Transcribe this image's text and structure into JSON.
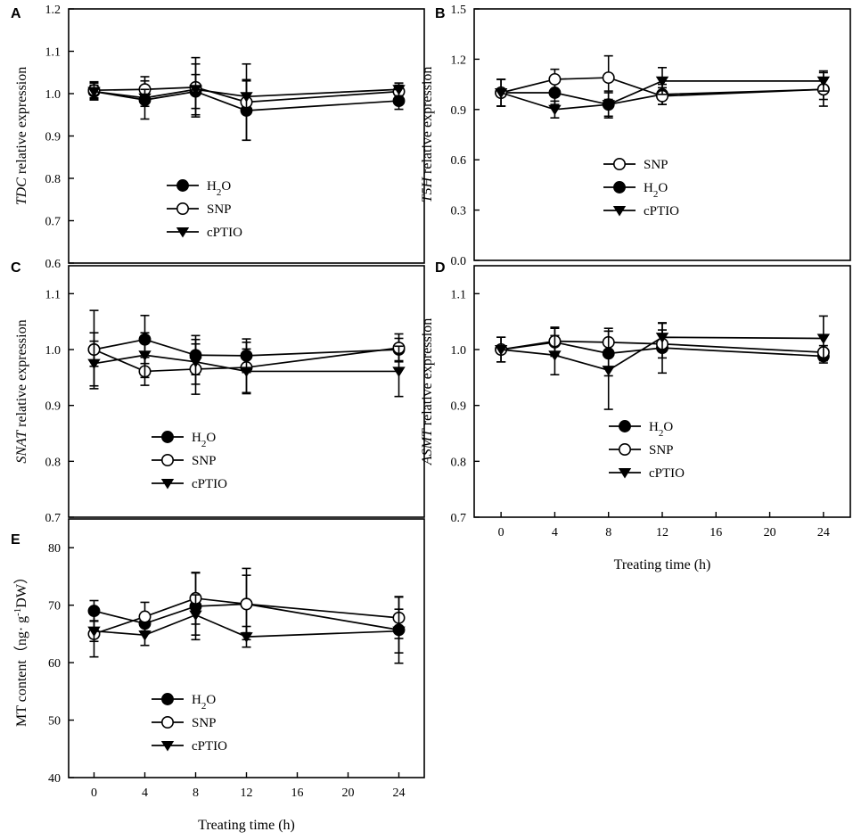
{
  "figure": {
    "xlabel_text": "Treating time (h)"
  },
  "chart_data": [
    {
      "id": "A",
      "panel_label": "A",
      "type": "line",
      "ylabel_parts": [
        {
          "t": "TDC",
          "i": true
        },
        {
          "t": " relative expression"
        }
      ],
      "ylim": [
        0.6,
        1.2
      ],
      "yticks": [
        0.6,
        0.7,
        0.8,
        0.9,
        1.0,
        1.1,
        1.2
      ],
      "ydecimals": 1,
      "xlim": [
        -2,
        26
      ],
      "xticks": [],
      "x_tick_labels": false,
      "x": [
        0,
        4,
        8,
        12,
        24
      ],
      "series": [
        {
          "name": "H2O",
          "label_html": "H<tspan baseline-shift=\"sub\" font-size=\"11\">2</tspan>O",
          "marker": "circle-filled",
          "values": [
            1.005,
            0.985,
            1.005,
            0.96,
            0.983
          ],
          "errors": [
            0.02,
            0.045,
            0.04,
            0.07,
            0.02
          ]
        },
        {
          "name": "SNP",
          "marker": "circle-open",
          "values": [
            1.008,
            1.01,
            1.015,
            0.98,
            1.005
          ],
          "errors": [
            0.02,
            0.03,
            0.07,
            0.09,
            0.015
          ]
        },
        {
          "name": "cPTIO",
          "marker": "triangle-down",
          "values": [
            1.005,
            0.99,
            1.01,
            0.993,
            1.01
          ],
          "errors": [
            0.015,
            0.02,
            0.06,
            0.04,
            0.015
          ]
        }
      ],
      "legend_order": [
        "H2O",
        "SNP",
        "cPTIO"
      ]
    },
    {
      "id": "B",
      "panel_label": "B",
      "type": "line",
      "ylabel_parts": [
        {
          "t": "T5H",
          "i": true
        },
        {
          "t": " relative expression"
        }
      ],
      "ylim": [
        0.0,
        1.5
      ],
      "yticks": [
        0.0,
        0.3,
        0.6,
        0.9,
        1.2,
        1.5
      ],
      "ydecimals": 1,
      "xlim": [
        -2,
        26
      ],
      "xticks": [],
      "x_tick_labels": false,
      "x": [
        0,
        4,
        8,
        12,
        24
      ],
      "series": [
        {
          "name": "H2O",
          "label_html": "H<tspan baseline-shift=\"sub\" font-size=\"11\">2</tspan>O",
          "marker": "circle-filled",
          "values": [
            1.0,
            1.0,
            0.93,
            0.99,
            1.02
          ],
          "errors": [
            0.08,
            0.07,
            0.07,
            0.06,
            0.1
          ]
        },
        {
          "name": "SNP",
          "marker": "circle-open",
          "values": [
            1.0,
            1.08,
            1.09,
            0.98,
            1.02
          ],
          "errors": [
            0.08,
            0.06,
            0.13,
            0.05,
            0.06
          ]
        },
        {
          "name": "cPTIO",
          "marker": "triangle-down",
          "values": [
            1.0,
            0.9,
            0.93,
            1.07,
            1.07
          ],
          "errors": [
            0.08,
            0.05,
            0.08,
            0.08,
            0.06
          ]
        }
      ],
      "legend_order": [
        "SNP",
        "H2O",
        "cPTIO"
      ]
    },
    {
      "id": "C",
      "panel_label": "C",
      "type": "line",
      "ylabel_parts": [
        {
          "t": "SNAT",
          "i": true
        },
        {
          "t": " relative expression"
        }
      ],
      "ylim": [
        0.7,
        1.15
      ],
      "yticks": [
        0.7,
        0.8,
        0.9,
        1.0,
        1.1
      ],
      "ydecimals": 1,
      "xlim": [
        -2,
        26
      ],
      "xticks": [],
      "x_tick_labels": false,
      "x": [
        0,
        4,
        8,
        12,
        24
      ],
      "series": [
        {
          "name": "H2O",
          "label_html": "H<tspan baseline-shift=\"sub\" font-size=\"11\">2</tspan>O",
          "marker": "circle-filled",
          "values": [
            1.0,
            1.018,
            0.99,
            0.989,
            1.0
          ],
          "errors": [
            0.07,
            0.043,
            0.035,
            0.03,
            0.02
          ]
        },
        {
          "name": "SNP",
          "marker": "circle-open",
          "values": [
            1.0,
            0.961,
            0.965,
            0.968,
            1.003
          ],
          "errors": [
            0.03,
            0.025,
            0.045,
            0.045,
            0.025
          ]
        },
        {
          "name": "cPTIO",
          "marker": "triangle-down",
          "values": [
            0.975,
            0.99,
            0.978,
            0.961,
            0.961
          ],
          "errors": [
            0.04,
            0.04,
            0.04,
            0.04,
            0.045
          ]
        }
      ],
      "legend_order": [
        "H2O",
        "SNP",
        "cPTIO"
      ]
    },
    {
      "id": "D",
      "panel_label": "D",
      "type": "line",
      "ylabel_parts": [
        {
          "t": "ASMT",
          "i": true
        },
        {
          "t": " relative expression"
        }
      ],
      "ylim": [
        0.7,
        1.15
      ],
      "yticks": [
        0.7,
        0.8,
        0.9,
        1.0,
        1.1
      ],
      "ydecimals": 1,
      "xlim": [
        -2,
        26
      ],
      "xticks": [
        0,
        4,
        8,
        12,
        16,
        20,
        24
      ],
      "x_tick_labels": true,
      "x": [
        0,
        4,
        8,
        12,
        24
      ],
      "series": [
        {
          "name": "H2O",
          "label_html": "H<tspan baseline-shift=\"sub\" font-size=\"11\">2</tspan>O",
          "marker": "circle-filled",
          "values": [
            1.0,
            1.013,
            0.993,
            1.003,
            0.988
          ],
          "errors": [
            0.022,
            0.025,
            0.04,
            0.045,
            0.012
          ]
        },
        {
          "name": "SNP",
          "marker": "circle-open",
          "values": [
            1.0,
            1.015,
            1.013,
            1.01,
            0.995
          ],
          "errors": [
            0.022,
            0.025,
            0.025,
            0.025,
            0.012
          ]
        },
        {
          "name": "cPTIO",
          "marker": "triangle-down",
          "values": [
            1.0,
            0.99,
            0.963,
            1.022,
            1.02
          ],
          "errors": [
            0.022,
            0.035,
            0.07,
            0.025,
            0.04
          ]
        }
      ],
      "legend_order": [
        "H2O",
        "SNP",
        "cPTIO"
      ]
    },
    {
      "id": "E",
      "panel_label": "E",
      "type": "line",
      "ylabel_parts": [
        {
          "t": "MT content（ng· g"
        },
        {
          "t": "-1",
          "sup": true
        },
        {
          "t": "DW）"
        }
      ],
      "ylim": [
        40,
        85
      ],
      "yticks": [
        40,
        50,
        60,
        70,
        80
      ],
      "ydecimals": 0,
      "xlim": [
        -2,
        26
      ],
      "xticks": [
        0,
        4,
        8,
        12,
        16,
        20,
        24
      ],
      "x_tick_labels": true,
      "x": [
        0,
        4,
        8,
        12,
        24
      ],
      "series": [
        {
          "name": "H2O",
          "label_html": "H<tspan baseline-shift=\"sub\" font-size=\"11\">2</tspan>O",
          "marker": "circle-filled",
          "values": [
            69.0,
            66.8,
            69.8,
            70.2,
            65.7
          ],
          "errors": [
            1.8,
            1.8,
            5.8,
            5.0,
            5.8
          ]
        },
        {
          "name": "SNP",
          "marker": "circle-open",
          "values": [
            65.0,
            68.0,
            71.2,
            70.2,
            67.8
          ],
          "errors": [
            4.0,
            2.5,
            4.5,
            6.2,
            3.6
          ]
        },
        {
          "name": "cPTIO",
          "marker": "triangle-down",
          "values": [
            65.5,
            64.8,
            68.3,
            64.5,
            65.5
          ],
          "errors": [
            1.8,
            1.8,
            3.5,
            1.8,
            3.8
          ]
        }
      ],
      "legend_order": [
        "H2O",
        "SNP",
        "cPTIO"
      ]
    }
  ]
}
